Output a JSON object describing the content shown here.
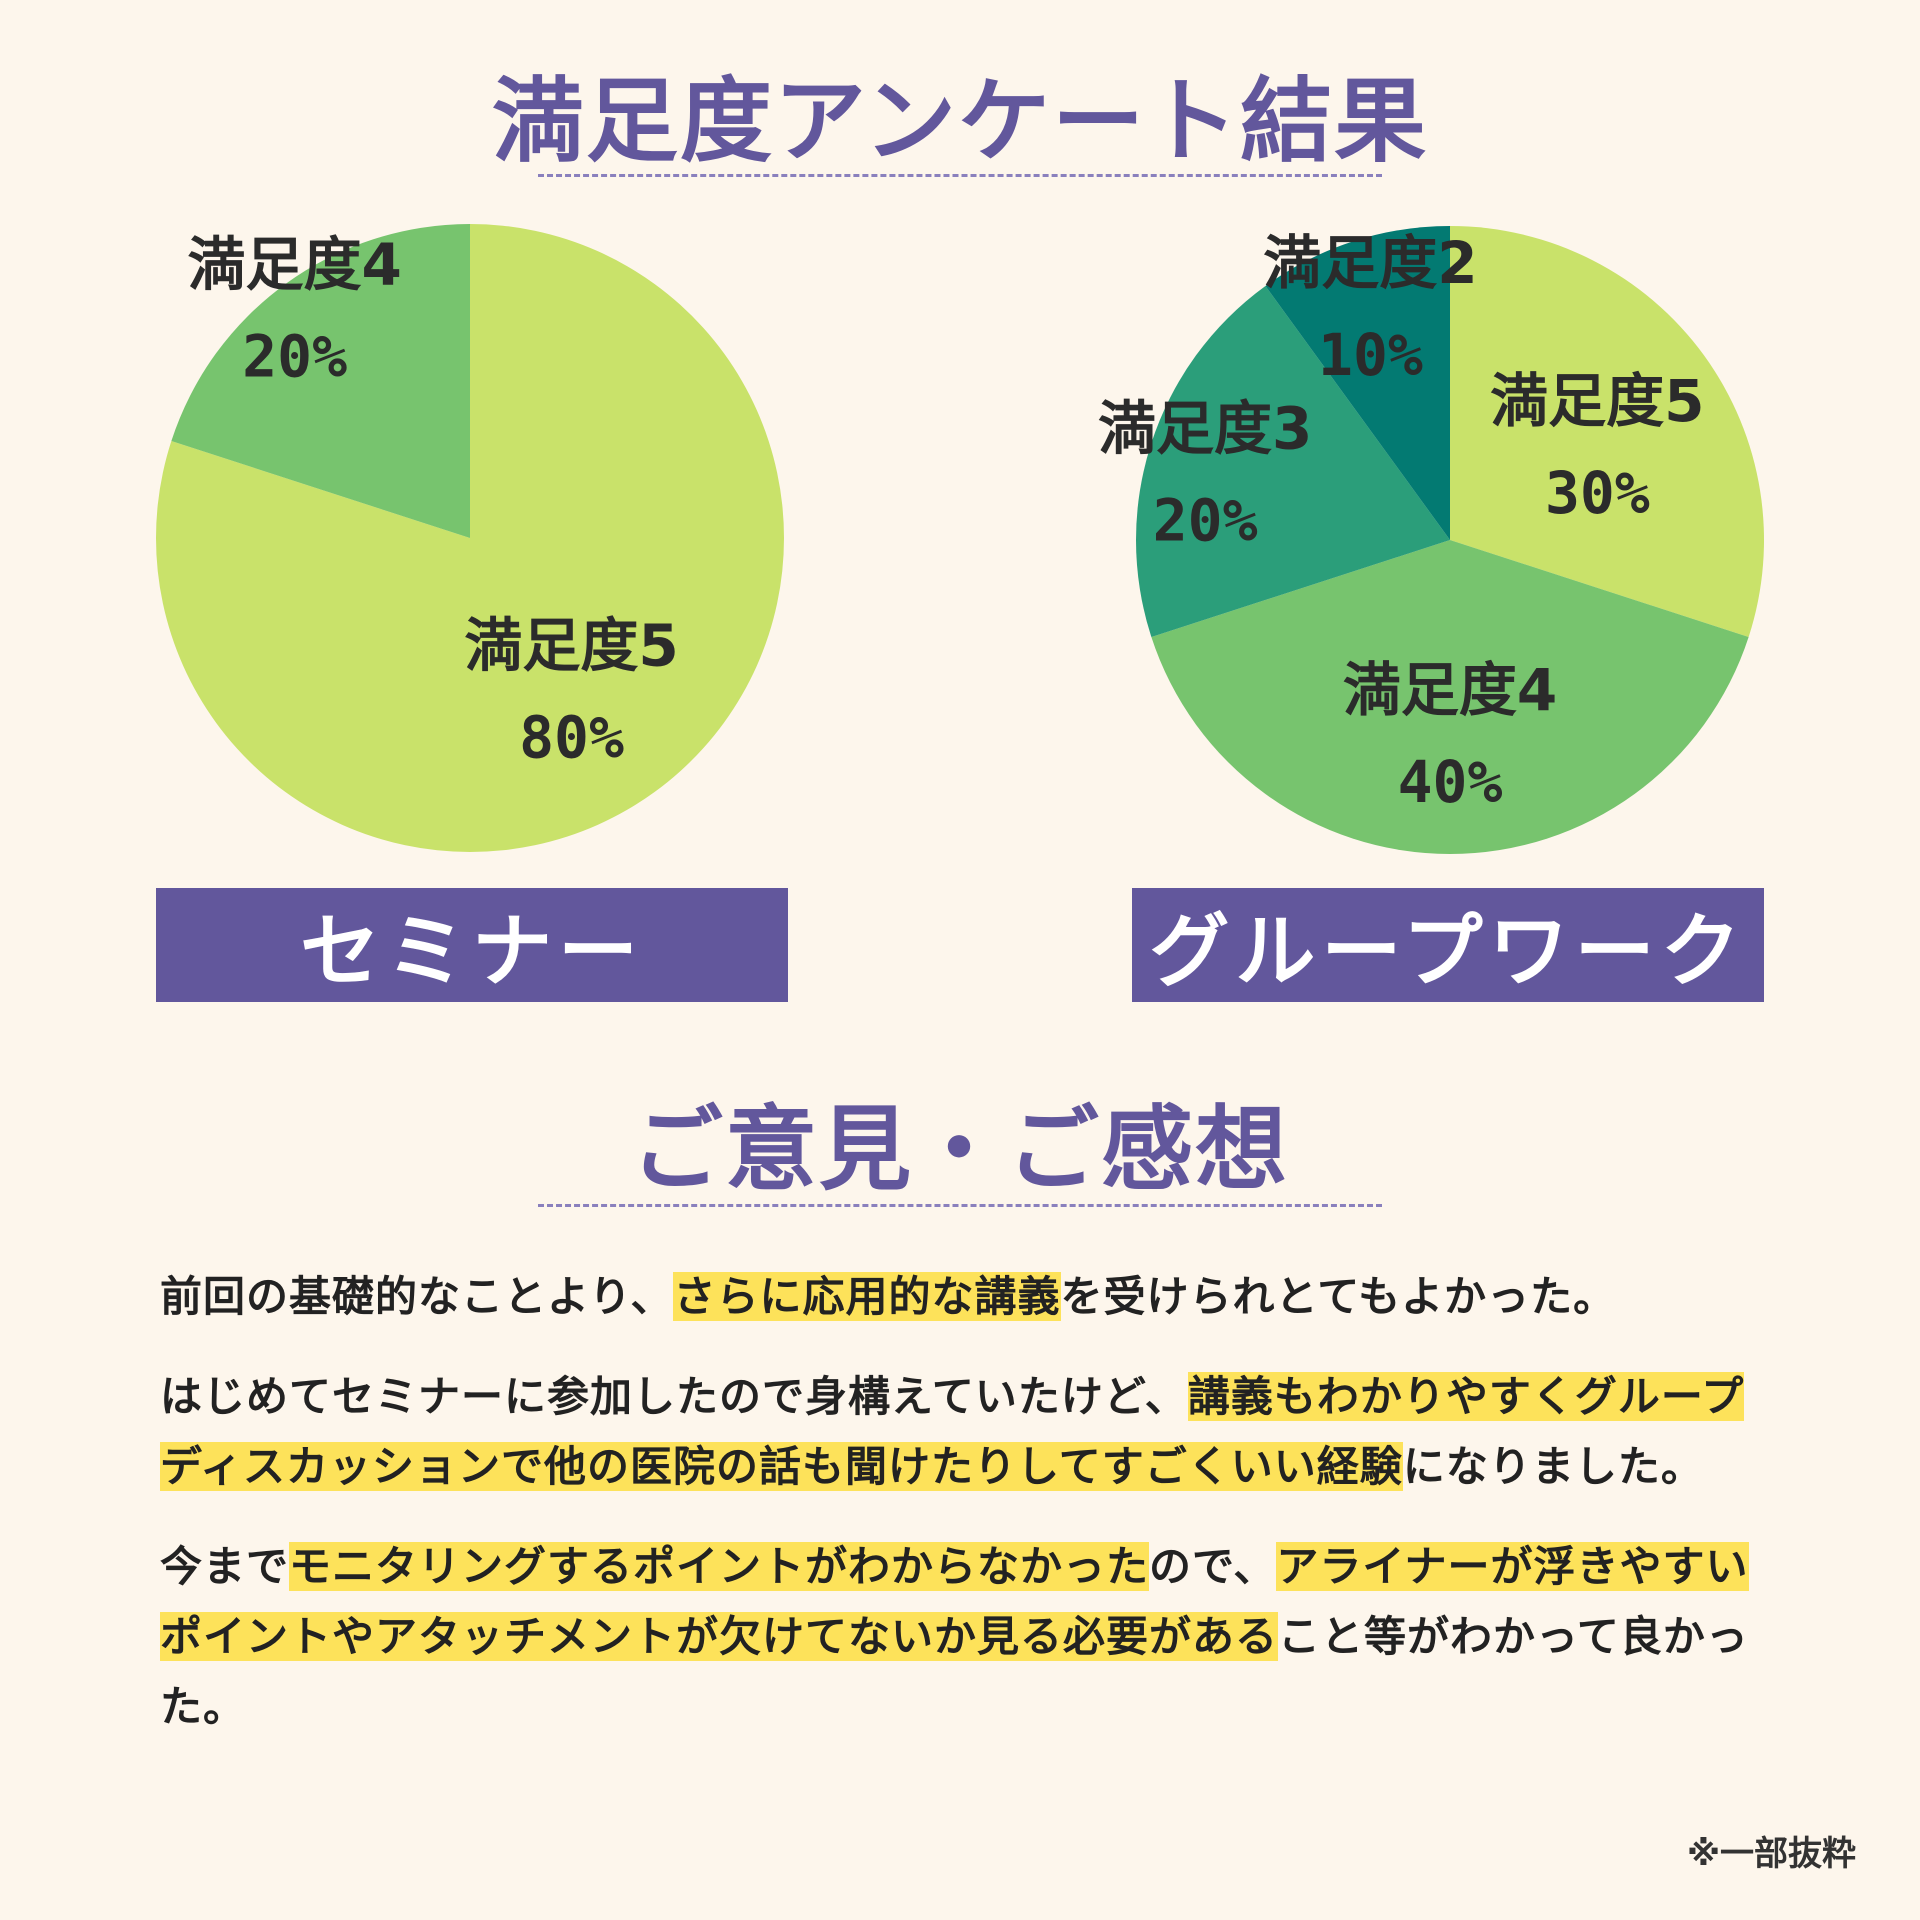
{
  "header": {
    "survey_title": "満足度アンケート結果",
    "opinions_title": "ご意見・ご感想"
  },
  "chart_data": [
    {
      "type": "pie",
      "title": "セミナー",
      "slices": [
        {
          "label": "満足度5",
          "value": 80,
          "display": "80%",
          "color": "#c9e26a"
        },
        {
          "label": "満足度4",
          "value": 20,
          "display": "20%",
          "color": "#77c46e"
        }
      ]
    },
    {
      "type": "pie",
      "title": "グループワーク",
      "slices": [
        {
          "label": "満足度5",
          "value": 30,
          "display": "30%",
          "color": "#c9e26a"
        },
        {
          "label": "満足度4",
          "value": 40,
          "display": "40%",
          "color": "#77c46e"
        },
        {
          "label": "満足度3",
          "value": 20,
          "display": "20%",
          "color": "#2b9e7a"
        },
        {
          "label": "満足度2",
          "value": 10,
          "display": "10%",
          "color": "#037a72"
        }
      ]
    }
  ],
  "comments": [
    [
      {
        "text": "前回の基礎的なことより、",
        "hl": false
      },
      {
        "text": "さらに応用的な講義",
        "hl": true
      },
      {
        "text": "を受けられとてもよかった。",
        "hl": false
      }
    ],
    [
      {
        "text": "はじめてセミナーに参加したので身構えていたけど、",
        "hl": false
      },
      {
        "text": "講義もわかりやすくグループディスカッションで他の医院の話も聞けたりしてすごくいい経験",
        "hl": true
      },
      {
        "text": "になりました。",
        "hl": false
      }
    ],
    [
      {
        "text": "今まで",
        "hl": false
      },
      {
        "text": "モニタリングするポイントがわからなかった",
        "hl": true
      },
      {
        "text": "ので、",
        "hl": false
      },
      {
        "text": "アライナーが浮きやすいポイントやアタッチメントが欠けてないか見る必要がある",
        "hl": true
      },
      {
        "text": "こと等がわかって良かった。",
        "hl": false
      }
    ]
  ],
  "footnote": "※一部抜粋",
  "colors": {
    "accent": "#62579c",
    "highlight": "#fde25a",
    "background": "#fdf6ec"
  }
}
